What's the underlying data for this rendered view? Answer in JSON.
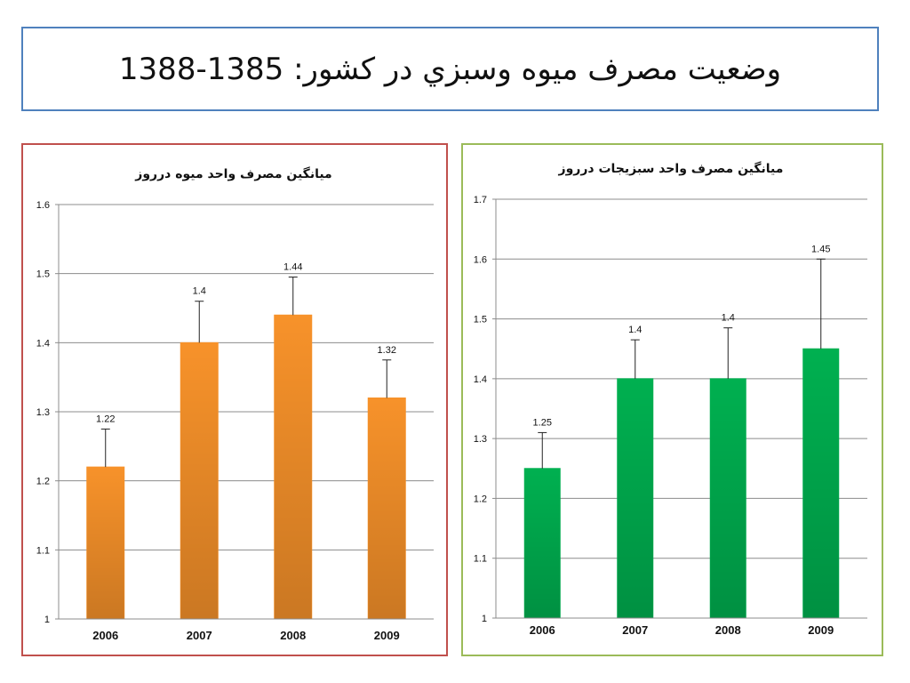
{
  "slide": {
    "title": "وضعيت مصرف ميوه وسبزي در كشور: 1385-1388"
  },
  "colors": {
    "title_border": "#4f81bd",
    "fruit_panel_border": "#c0504d",
    "veg_panel_border": "#9bbb59",
    "fruit_bar": "#f7922a",
    "veg_bar": "#00b050"
  },
  "chart_data": [
    {
      "type": "bar",
      "title": "ميانگين مصرف واحد ميوه درروز",
      "categories": [
        "2006",
        "2007",
        "2008",
        "2009"
      ],
      "values": [
        1.22,
        1.4,
        1.44,
        1.32
      ],
      "data_labels": [
        "1.22",
        "1.4",
        "1.44",
        "1.32"
      ],
      "error_upper": [
        1.275,
        1.46,
        1.495,
        1.375
      ],
      "ylim": [
        1,
        1.6
      ],
      "yticks": [
        1,
        1.1,
        1.2,
        1.3,
        1.4,
        1.5,
        1.6
      ],
      "ytick_labels": [
        "1",
        "1.1",
        "1.2",
        "1.3",
        "1.4",
        "1.5",
        "1.6"
      ],
      "grid": true,
      "bar_color": "#f7922a"
    },
    {
      "type": "bar",
      "title": "ميانگين مصرف واحد سبزيجات درروز",
      "categories": [
        "2006",
        "2007",
        "2008",
        "2009"
      ],
      "values": [
        1.25,
        1.4,
        1.4,
        1.45
      ],
      "data_labels": [
        "1.25",
        "1.4",
        "1.4",
        "1.45"
      ],
      "error_upper": [
        1.31,
        1.465,
        1.485,
        1.6
      ],
      "ylim": [
        1,
        1.7
      ],
      "yticks": [
        1,
        1.1,
        1.2,
        1.3,
        1.4,
        1.5,
        1.6,
        1.7
      ],
      "ytick_labels": [
        "1",
        "1.1",
        "1.2",
        "1.3",
        "1.4",
        "1.5",
        "1.6",
        "1.7"
      ],
      "grid": true,
      "bar_color": "#00b050"
    }
  ]
}
